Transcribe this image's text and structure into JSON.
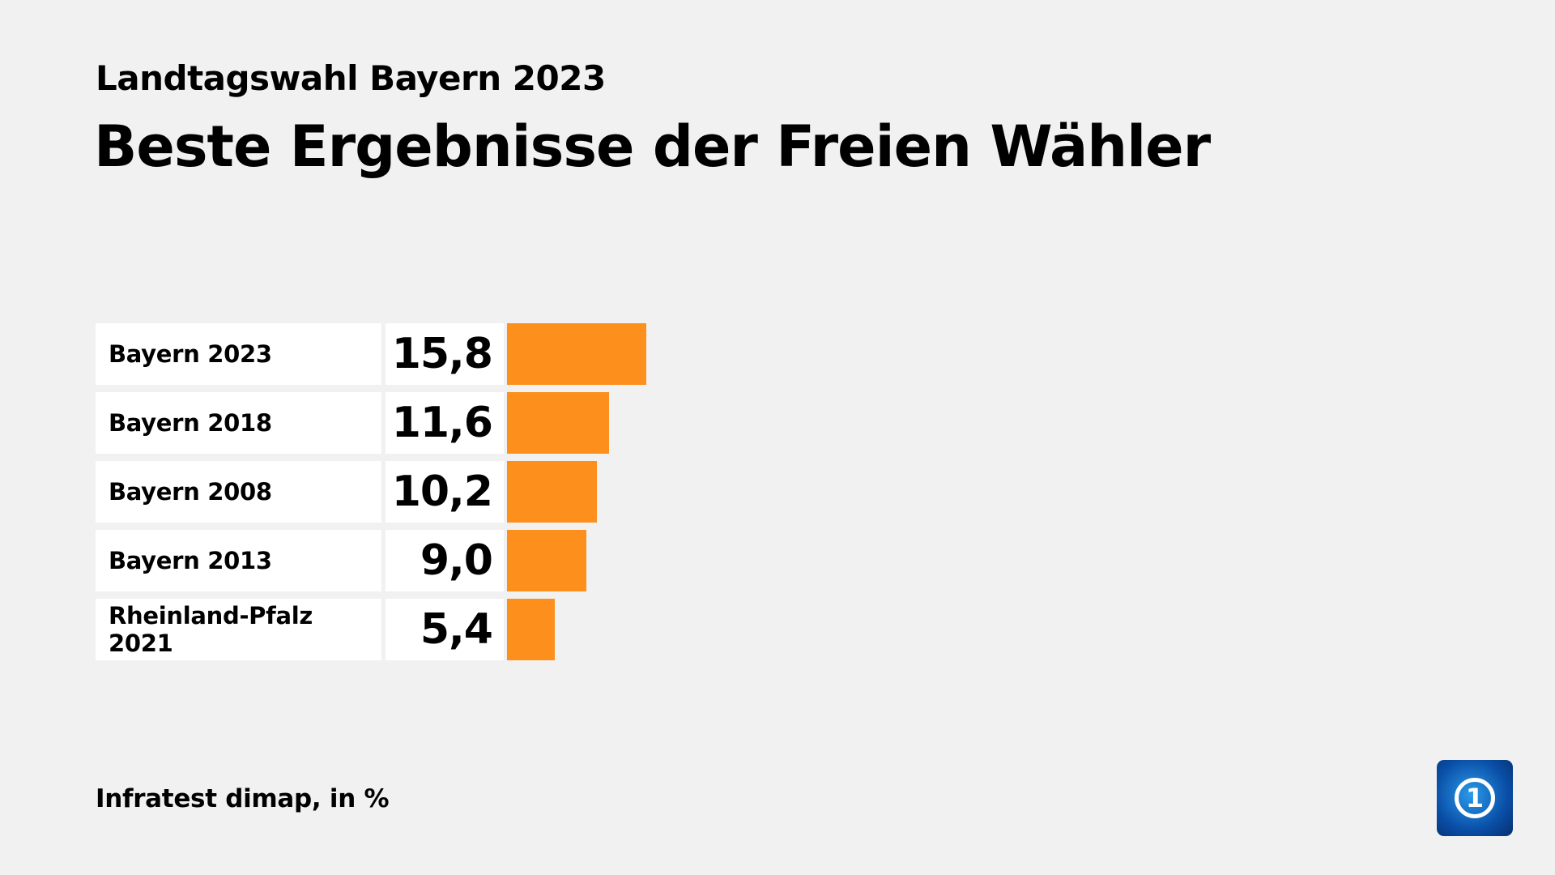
{
  "chart_data": {
    "type": "bar",
    "orientation": "horizontal",
    "subtitle": "Landtagswahl Bayern 2023",
    "title": "Beste Ergebnisse der Freien Wähler",
    "categories": [
      "Bayern 2023",
      "Bayern 2018",
      "Bayern 2008",
      "Bayern 2013",
      "Rheinland-Pfalz 2021"
    ],
    "values": [
      15.8,
      11.6,
      10.2,
      9.0,
      5.4
    ],
    "value_labels": [
      "15,8",
      "11,6",
      "10,2",
      "9,0",
      "5,4"
    ],
    "bar_color": "#fd8f1c",
    "source": "Infratest dimap, in %"
  },
  "logo": {
    "text": "1",
    "icon": "ard-tagesschau-logo"
  }
}
